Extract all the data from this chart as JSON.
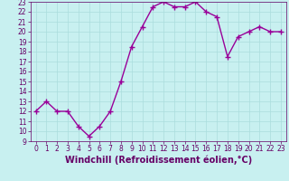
{
  "x": [
    0,
    1,
    2,
    3,
    4,
    5,
    6,
    7,
    8,
    9,
    10,
    11,
    12,
    13,
    14,
    15,
    16,
    17,
    18,
    19,
    20,
    21,
    22,
    23
  ],
  "y": [
    12,
    13,
    12,
    12,
    10.5,
    9.5,
    10.5,
    12,
    15,
    18.5,
    20.5,
    22.5,
    23,
    22.5,
    22.5,
    23,
    22,
    21.5,
    17.5,
    19.5,
    20,
    20.5,
    20,
    20
  ],
  "line_color": "#990099",
  "marker": "+",
  "marker_size": 4,
  "bg_color": "#c8f0f0",
  "grid_color": "#aadddd",
  "xlabel": "Windchill (Refroidissement éolien,°C)",
  "xlabel_color": "#660066",
  "ylim": [
    9,
    23
  ],
  "xlim": [
    -0.5,
    23.5
  ],
  "yticks": [
    9,
    10,
    11,
    12,
    13,
    14,
    15,
    16,
    17,
    18,
    19,
    20,
    21,
    22,
    23
  ],
  "xticks": [
    0,
    1,
    2,
    3,
    4,
    5,
    6,
    7,
    8,
    9,
    10,
    11,
    12,
    13,
    14,
    15,
    16,
    17,
    18,
    19,
    20,
    21,
    22,
    23
  ],
  "tick_color": "#660066",
  "tick_fontsize": 5.5,
  "xlabel_fontsize": 7.0,
  "linewidth": 1.0
}
